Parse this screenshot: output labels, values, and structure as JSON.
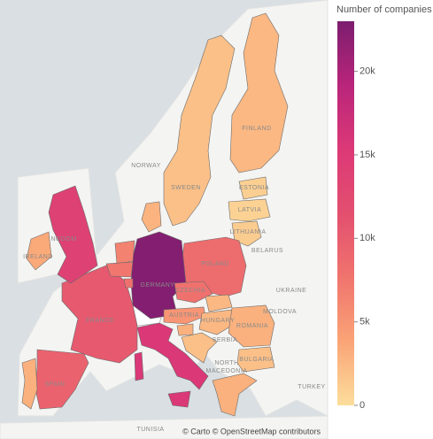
{
  "chart_data": {
    "type": "choropleth",
    "colorbar_title": "Number of companies",
    "colorscale": [
      "#fcde9c",
      "#faa476",
      "#f0746e",
      "#e34f6f",
      "#dc3977",
      "#b9257a",
      "#7c1d6f"
    ],
    "clim": [
      0,
      23000
    ],
    "ticks": [
      0,
      {
        "value": 5000,
        "label": "5k"
      },
      {
        "value": 10000,
        "label": "10k"
      },
      {
        "value": 15000,
        "label": "15k"
      },
      {
        "value": 20000,
        "label": "20k"
      }
    ],
    "categories": [
      "SWEDEN",
      "FINLAND",
      "ESTONIA",
      "LATVIA",
      "LITHUANIA",
      "POLAND",
      "GERMANY",
      "FRANCE",
      "SPAIN",
      null,
      "NGDOM",
      "IRELAND",
      null,
      null,
      null,
      null,
      null,
      "CZECHIA",
      "AUSTRIA",
      "HUNGARY",
      null,
      null,
      null,
      "ROMANIA",
      "BULGARIA",
      null
    ],
    "values": [
      2000,
      2500,
      1000,
      800,
      1200,
      8500,
      22500,
      10500,
      9500,
      3000,
      14000,
      3500,
      15500,
      6500,
      7500,
      8000,
      2800,
      8000,
      5000,
      2500,
      2500,
      3000,
      2000,
      3000,
      2000,
      3000
    ],
    "map_labels": [
      "NORWAY",
      "BELARUS",
      "UKRAINE",
      "MOLDOVA",
      "SERBIA",
      "NORTH",
      "MACEDONIA",
      "TURKEY",
      "TUNISIA"
    ],
    "attribution": "© Carto © OpenStreetMap contributors"
  }
}
